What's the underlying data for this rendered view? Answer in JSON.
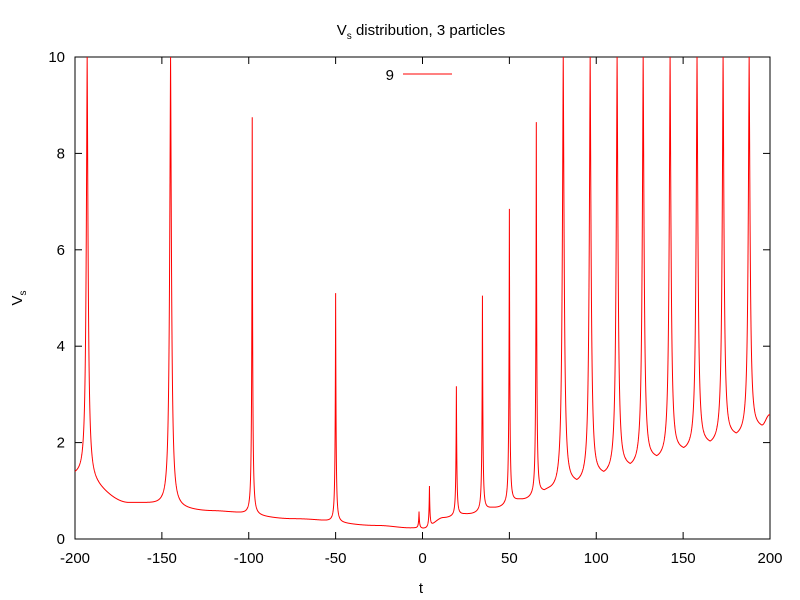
{
  "chart_data": {
    "type": "line",
    "title": {
      "main": "V",
      "sub": "s",
      "rest": " distribution, 3 particles"
    },
    "xlabel": "t",
    "ylabel": {
      "main": "V",
      "sub": "s"
    },
    "xlim": [
      -200,
      200
    ],
    "ylim": [
      0,
      10
    ],
    "xticks": [
      -200,
      -150,
      -100,
      -50,
      0,
      50,
      100,
      150,
      200
    ],
    "yticks": [
      0,
      2,
      4,
      6,
      8,
      10
    ],
    "xtick_labels": [
      "-200",
      "-150",
      "-100",
      "-50",
      "0",
      "50",
      "100",
      "150",
      "200"
    ],
    "ytick_labels": [
      "0",
      "2",
      "4",
      "6",
      "8",
      "10"
    ],
    "grid": false,
    "legend_position": "top-center",
    "series": [
      {
        "name": "9",
        "color": "#ff0000",
        "spikes": [
          {
            "t": -193,
            "peak": 10
          },
          {
            "t": -145,
            "peak": 10
          },
          {
            "t": -98,
            "peak": 8.75
          },
          {
            "t": -50,
            "peak": 5.1
          },
          {
            "t": -2,
            "peak": 0.57
          },
          {
            "t": 4,
            "peak": 1.1
          },
          {
            "t": 19.5,
            "peak": 3.17
          },
          {
            "t": 34.5,
            "peak": 5.05
          },
          {
            "t": 50,
            "peak": 6.85
          },
          {
            "t": 65.5,
            "peak": 8.65
          },
          {
            "t": 81,
            "peak": 10
          },
          {
            "t": 96.5,
            "peak": 10
          },
          {
            "t": 112,
            "peak": 10
          },
          {
            "t": 127,
            "peak": 10
          },
          {
            "t": 142.5,
            "peak": 10
          },
          {
            "t": 158,
            "peak": 10
          },
          {
            "t": 173,
            "peak": 10
          },
          {
            "t": 188,
            "peak": 10
          }
        ],
        "troughs": [
          {
            "t": -200,
            "v": 1.3
          },
          {
            "t": -169,
            "v": 0.75
          },
          {
            "t": -121,
            "v": 0.58
          },
          {
            "t": -74,
            "v": 0.42
          },
          {
            "t": -26,
            "v": 0.28
          },
          {
            "t": -6,
            "v": 0.23
          },
          {
            "t": 1.5,
            "v": 0.22
          },
          {
            "t": 12,
            "v": 0.44
          },
          {
            "t": 27,
            "v": 0.52
          },
          {
            "t": 42.5,
            "v": 0.65
          },
          {
            "t": 58,
            "v": 0.82
          },
          {
            "t": 73.5,
            "v": 1.0
          },
          {
            "t": 89,
            "v": 1.15
          },
          {
            "t": 104.5,
            "v": 1.32
          },
          {
            "t": 119.5,
            "v": 1.48
          },
          {
            "t": 135,
            "v": 1.65
          },
          {
            "t": 150.5,
            "v": 1.82
          },
          {
            "t": 165.5,
            "v": 1.95
          },
          {
            "t": 180.5,
            "v": 2.12
          },
          {
            "t": 195,
            "v": 2.28
          },
          {
            "t": 200,
            "v": 2.55
          }
        ]
      }
    ]
  }
}
